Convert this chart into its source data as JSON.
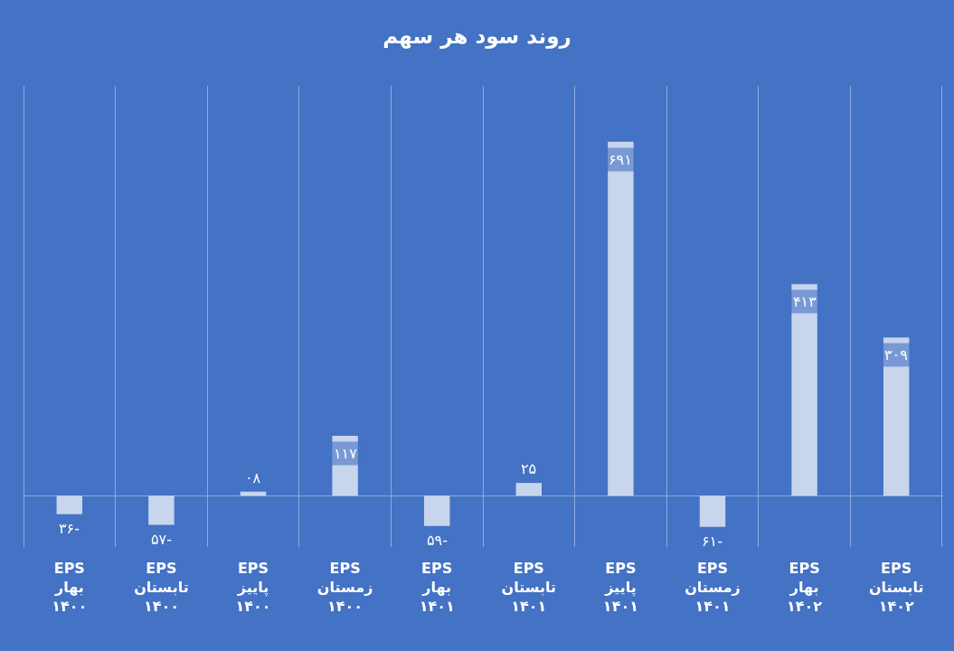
{
  "chart_data": {
    "type": "bar",
    "title": "روند سود هر سهم",
    "categories": [
      "EPS\nبهار\n۱۴۰۰",
      "EPS\nتابستان\n۱۴۰۰",
      "EPS\nپاییز\n۱۴۰۰",
      "EPS\nزمستان\n۱۴۰۰",
      "EPS\nبهار\n۱۴۰۱",
      "EPS\nتابستان\n۱۴۰۱",
      "EPS\nپاییز\n۱۴۰۱",
      "EPS\nزمستان\n۱۴۰۱",
      "EPS\nبهار\n۱۴۰۲",
      "EPS\nتابستان\n۱۴۰۲"
    ],
    "values": [
      -36,
      -57,
      8,
      117,
      -59,
      25,
      691,
      -61,
      413,
      309
    ],
    "value_labels": [
      "-۳۶",
      "-۵۷",
      "۰۸",
      "۱۱۷",
      "-۵۹",
      "۲۵",
      "۶۹۱",
      "-۶۱",
      "۴۱۳",
      "۳۰۹"
    ],
    "color": "#c7d5ed",
    "grid": "x"
  }
}
